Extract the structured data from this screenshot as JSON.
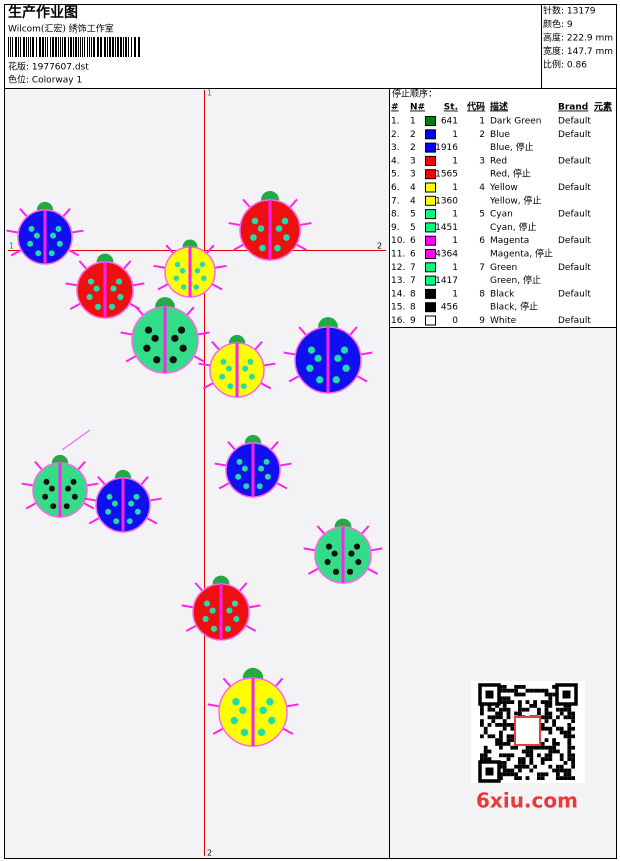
{
  "header": {
    "title": "生产作业图",
    "studio": "Wilcom(汇宏) 绣饰工作室",
    "pattern": "花版: 1977607.dst",
    "colorway": "色位: Colorway 1"
  },
  "stats": [
    "针数: 13179",
    "颜色: 9",
    "高度: 222.9 mm",
    "宽度: 147.7 mm",
    "比例: 0.86"
  ],
  "crosshair": {
    "top": "1",
    "left": "1",
    "right": "2",
    "bottom": "2"
  },
  "table": {
    "title": "停止顺序：",
    "columns": [
      "#",
      "N#",
      "St.",
      "代码",
      "描述",
      "Brand",
      "元素"
    ],
    "rows": [
      {
        "no": "1.",
        "n": "1",
        "color": "#008000",
        "st": "641",
        "code": "1",
        "desc": "Dark Green",
        "brand": "Default"
      },
      {
        "no": "2.",
        "n": "2",
        "color": "#0000ff",
        "st": "1",
        "code": "2",
        "desc": "Blue",
        "brand": "Default"
      },
      {
        "no": "3.",
        "n": "2",
        "color": "#0000ff",
        "st": "1916",
        "desc": "Blue, 停止"
      },
      {
        "no": "4.",
        "n": "3",
        "color": "#ff0000",
        "st": "1",
        "code": "3",
        "desc": "Red",
        "brand": "Default"
      },
      {
        "no": "5.",
        "n": "3",
        "color": "#ff0000",
        "st": "1565",
        "desc": "Red, 停止"
      },
      {
        "no": "6.",
        "n": "4",
        "color": "#ffff00",
        "st": "1",
        "code": "4",
        "desc": "Yellow",
        "brand": "Default"
      },
      {
        "no": "7.",
        "n": "4",
        "color": "#ffff00",
        "st": "1360",
        "desc": "Yellow, 停止"
      },
      {
        "no": "8.",
        "n": "5",
        "color": "#00ff80",
        "st": "1",
        "code": "5",
        "desc": "Cyan",
        "brand": "Default"
      },
      {
        "no": "9.",
        "n": "5",
        "color": "#00ff80",
        "st": "1451",
        "desc": "Cyan, 停止"
      },
      {
        "no": "10.",
        "n": "6",
        "color": "#ff00ff",
        "st": "1",
        "code": "6",
        "desc": "Magenta",
        "brand": "Default"
      },
      {
        "no": "11.",
        "n": "6",
        "color": "#ff00ff",
        "st": "4364",
        "desc": "Magenta, 停止"
      },
      {
        "no": "12.",
        "n": "7",
        "color": "#00ff80",
        "st": "1",
        "code": "7",
        "desc": "Green",
        "brand": "Default"
      },
      {
        "no": "13.",
        "n": "7",
        "color": "#00ff80",
        "st": "1417",
        "desc": "Green, 停止"
      },
      {
        "no": "14.",
        "n": "8",
        "color": "#000000",
        "st": "1",
        "code": "8",
        "desc": "Black",
        "brand": "Default"
      },
      {
        "no": "15.",
        "n": "8",
        "color": "#000000",
        "st": "456",
        "desc": "Black, 停止"
      },
      {
        "no": "16.",
        "n": "9",
        "color": "#ffffff",
        "st": "0",
        "code": "9",
        "desc": "White",
        "brand": "Default"
      }
    ]
  },
  "watermark": "6xiu.com"
}
